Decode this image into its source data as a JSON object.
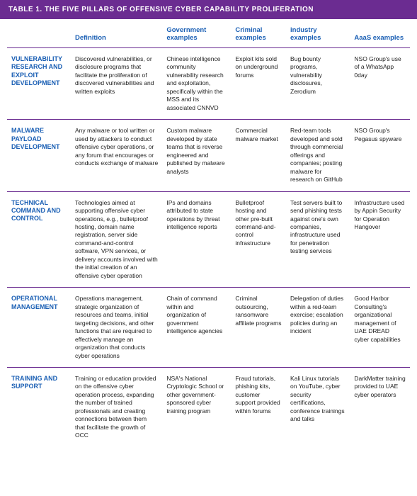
{
  "title": "TABLE 1. THE FIVE PILLARS OF OFFENSIVE CYBER CAPABILITY PROLIFERATION",
  "colors": {
    "header_bg": "#6b2c91",
    "header_text": "#ffffff",
    "accent": "#1a5fb4",
    "rule": "#6b2c91",
    "body_text": "#222222"
  },
  "columns": [
    "",
    "Definition",
    "Government examples",
    "Criminal examples",
    "industry examples",
    "AaaS examples"
  ],
  "rows": [
    {
      "name": "VULNERABILITY RESEARCH AND EXPLOIT DEVELOPMENT",
      "cells": [
        "Discovered vulnerabilities, or disclosure programs that facilitate the proliferation of discovered vulnerabilities and written exploits",
        "Chinese intelligence community vulnerability research and exploitation, specifically within the MSS and its associated CNNVD",
        "Exploit kits sold on underground forums",
        "Bug bounty programs, vulnerability disclosures, Zerodium",
        "NSO Group's use of a WhatsApp 0day"
      ]
    },
    {
      "name": "MALWARE PAYLOAD DEVELOPMENT",
      "cells": [
        "Any malware or tool written or used by attackers to conduct offensive cyber operations, or any forum that encourages or conducts exchange of malware",
        "Custom malware developed by state teams that is reverse engineered and published by malware analysts",
        "Commercial malware market",
        "Red-team tools developed and sold through commercial offerings and companies; posting malware for research on GitHub",
        "NSO Group's Pegasus spyware"
      ]
    },
    {
      "name": "TECHNICAL COMMAND AND CONTROL",
      "cells": [
        "Technologies aimed at supporting offensive cyber operations, e.g., bulletproof hosting, domain name registration, server side command-and-control software, VPN services, or delivery accounts involved with the initial creation of an offensive cyber operation",
        "IPs and domains attributed to state operations by threat intelligence reports",
        "Bulletproof hosting and other pre-built command-and-control infrastructure",
        "Test servers built to send phishing tests against one's own companies, infrastructure used for penetration testing services",
        "Infrastructure used by Appin Security for Operation Hangover"
      ]
    },
    {
      "name": "OPERATIONAL MANAGEMENT",
      "cells": [
        "Operations management, strategic organization of resources and teams, initial targeting decisions, and other functions that are required to effectively manage an organization that conducts cyber operations",
        "Chain of command within and organization of government intelligence agencies",
        "Criminal outsourcing, ransomware affiliate programs",
        "Delegation of duties within a red-team exercise; escalation policies during an incident",
        "Good Harbor Consulting's organizational management of UAE DREAD cyber capabilities"
      ]
    },
    {
      "name": "TRAINING AND SUPPORT",
      "cells": [
        "Training or education provided on the offensive cyber operation process, expanding the number of trained professionals and creating connections between them that facilitate the growth of OCC",
        "NSA's National Cryptologic School or other government-sponsored cyber training program",
        "Fraud tutorials, phishing kits, customer support provided within forums",
        "Kali Linux tutorials on YouTube, cyber security certifications, conference trainings and talks",
        "DarkMatter training provided to UAE cyber operators"
      ]
    }
  ]
}
